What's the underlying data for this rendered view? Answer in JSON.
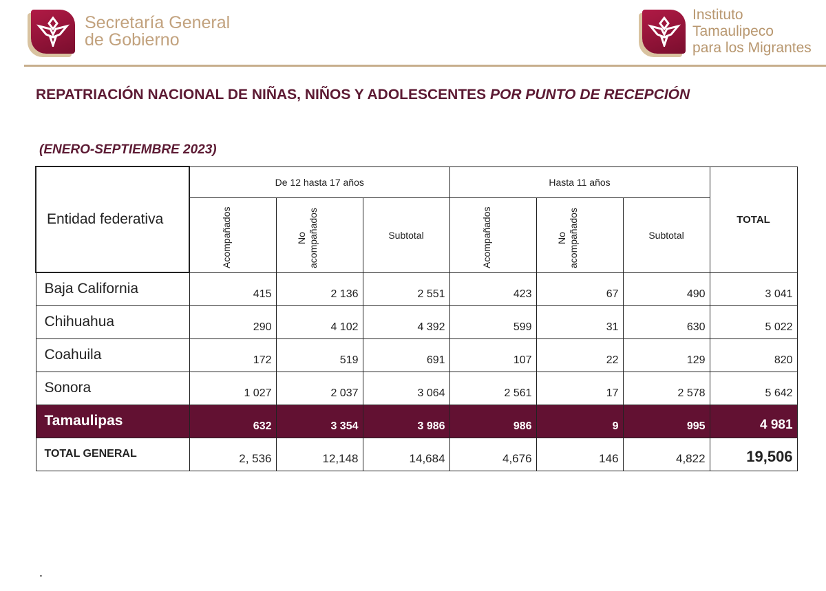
{
  "header": {
    "left_logo": "Secretaría General de Gobierno",
    "left_logo_line1": "Secretaría General",
    "left_logo_line2": "de Gobierno",
    "right_logo_line1": "Instituto Tamaulipeco",
    "right_logo_line2": "para los Migrantes"
  },
  "title": {
    "main": "REPATRIACIÓN NACIONAL DE NIÑAS, NIÑOS Y ADOLESCENTES",
    "italic": "POR PUNTO DE RECEPCIÓN"
  },
  "period": "(ENERO-SEPTIEMBRE 2023)",
  "table": {
    "entity_header": "Entidad federativa",
    "group1": "De 12 hasta 17 años",
    "group2": "Hasta 11 años",
    "total_header": "TOTAL",
    "sub": {
      "acomp": "Acompañados",
      "no1": "No",
      "no2": "acompañados",
      "subtotal": "Subtotal"
    },
    "rows": [
      {
        "name": "Baja California",
        "v": [
          "415",
          "2 136",
          "2 551",
          "423",
          "67",
          "490",
          "3 041"
        ]
      },
      {
        "name": "Chihuahua",
        "v": [
          "290",
          "4 102",
          "4 392",
          "599",
          "31",
          "630",
          "5 022"
        ]
      },
      {
        "name": "Coahuila",
        "v": [
          "172",
          "519",
          "691",
          "107",
          "22",
          "129",
          "820"
        ]
      },
      {
        "name": "Sonora",
        "v": [
          "1 027",
          "2 037",
          "3 064",
          "2 561",
          "17",
          "2 578",
          "5 642"
        ]
      },
      {
        "name": "Tamaulipas",
        "v": [
          "632",
          "3 354",
          "3 986",
          "986",
          "9",
          "995",
          "4 981"
        ]
      },
      {
        "name": "TOTAL GENERAL",
        "v": [
          "2, 536",
          "12,148",
          "14,684",
          "4,676",
          "146",
          "4,822",
          "19,506"
        ]
      }
    ]
  },
  "footer_mark": ".",
  "colors": {
    "maroon": "#621132",
    "gold": "#c2a27e"
  }
}
